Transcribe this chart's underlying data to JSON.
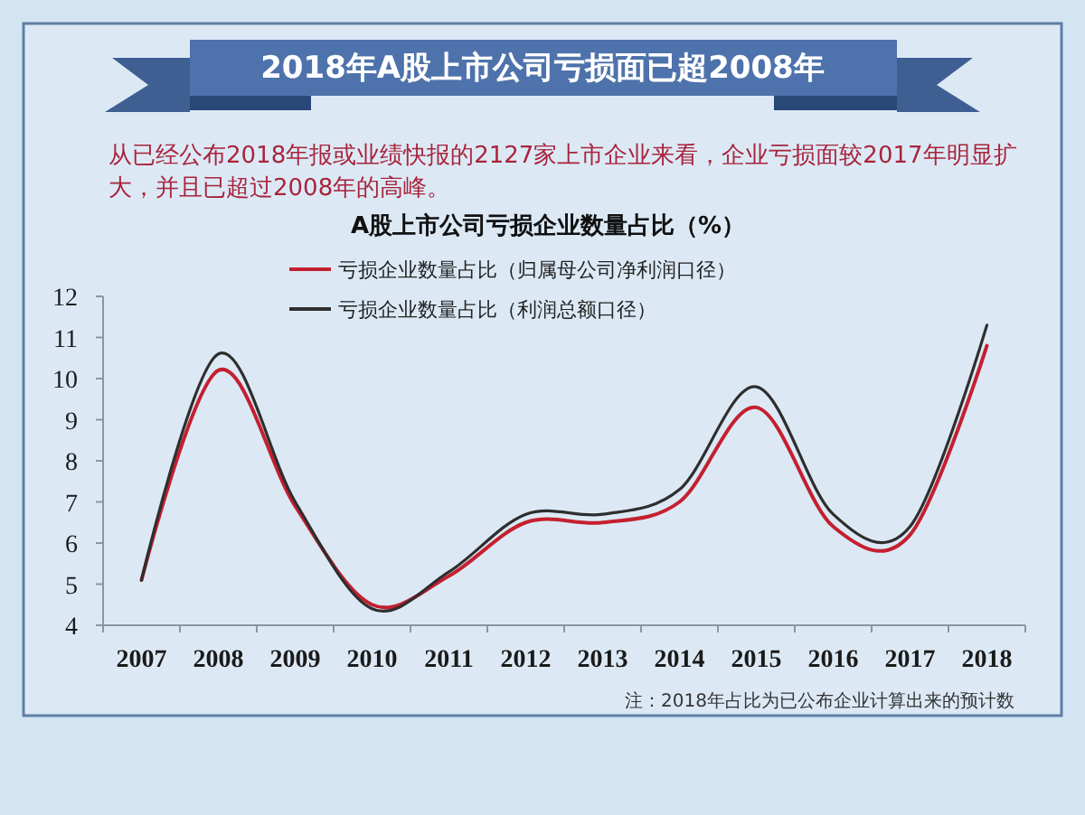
{
  "chart_data": {
    "type": "line",
    "title": "2018年A股上市公司亏损面已超2008年",
    "subtitle": "从已经公布2018年报或业绩快报的2127家上市企业来看，企业亏损面较2017年明显扩大，并且已超过2008年的高峰。",
    "annotations": [
      "A股上市公司亏损企业数量占比（%）",
      "注：2018年占比为已公布企业计算出来的预计数"
    ],
    "categories": [
      "2007",
      "2008",
      "2009",
      "2010",
      "2011",
      "2012",
      "2013",
      "2014",
      "2015",
      "2016",
      "2017",
      "2018"
    ],
    "series": [
      {
        "name": "亏损企业数量占比（归属母公司净利润口径）",
        "color": "#c42030",
        "values": [
          5.1,
          10.2,
          6.9,
          4.5,
          5.2,
          6.5,
          6.5,
          7.0,
          9.3,
          6.4,
          6.2,
          10.8
        ]
      },
      {
        "name": "亏损企业数量占比（利润总额口径）",
        "color": "#2e2e2e",
        "values": [
          5.1,
          10.6,
          7.0,
          4.4,
          5.3,
          6.7,
          6.7,
          7.3,
          9.8,
          6.7,
          6.4,
          11.3
        ]
      }
    ],
    "ylim": [
      4,
      12
    ],
    "yticks": [
      4,
      5,
      6,
      7,
      8,
      9,
      10,
      11,
      12
    ],
    "legend": "top"
  }
}
